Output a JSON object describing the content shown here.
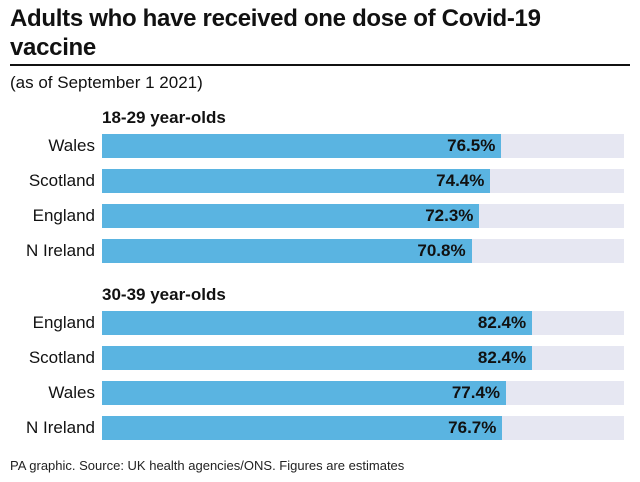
{
  "header": {
    "title": "Adults who have received one dose of Covid-19 vaccine",
    "subtitle": "(as of September 1 2021)"
  },
  "chart_data": {
    "type": "bar",
    "orientation": "horizontal",
    "unit": "%",
    "xlim": [
      0,
      100
    ],
    "groups": [
      {
        "name": "18-29 year-olds",
        "categories": [
          "Wales",
          "Scotland",
          "England",
          "N Ireland"
        ],
        "values": [
          76.5,
          74.4,
          72.3,
          70.8
        ],
        "labels": [
          "76.5%",
          "74.4%",
          "72.3%",
          "70.8%"
        ]
      },
      {
        "name": "30-39 year-olds",
        "categories": [
          "England",
          "Scotland",
          "Wales",
          "N Ireland"
        ],
        "values": [
          82.4,
          82.4,
          77.4,
          76.7
        ],
        "labels": [
          "82.4%",
          "82.4%",
          "77.4%",
          "76.7%"
        ]
      }
    ],
    "colors": {
      "bar": "#5ab4e1",
      "track": "#e6e7f2"
    }
  },
  "footer": {
    "source": "PA graphic. Source: UK health agencies/ONS. Figures are estimates"
  }
}
